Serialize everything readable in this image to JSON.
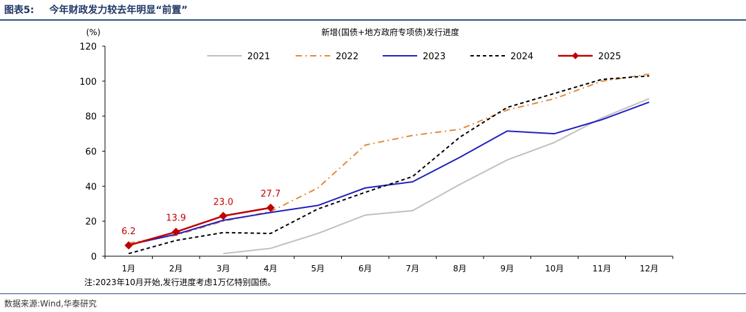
{
  "header": {
    "figure_label": "图表5:",
    "title": "今年财政发力较去年明显“前置”"
  },
  "footer": {
    "note": "注:2023年10月开始,发行进度考虑1万亿特别国债。",
    "source": "数据来源:Wind,华泰研究"
  },
  "chart_data": {
    "type": "line",
    "title": "新增(国债+地方政府专项债)发行进度",
    "ylabel": "(%)",
    "ylim": [
      0,
      120
    ],
    "yticks": [
      0,
      20,
      40,
      60,
      80,
      100,
      120
    ],
    "categories": [
      "1月",
      "2月",
      "3月",
      "4月",
      "5月",
      "6月",
      "7月",
      "8月",
      "9月",
      "10月",
      "11月",
      "12月"
    ],
    "legend_position": "top",
    "series": [
      {
        "name": "2021",
        "color": "#bfbfbf",
        "style": "solid",
        "values": [
          null,
          null,
          1.5,
          4.5,
          13,
          23.5,
          26,
          41,
          55,
          65,
          79,
          90
        ]
      },
      {
        "name": "2022",
        "color": "#e08a3c",
        "style": "dashdot",
        "values": [
          7.5,
          12,
          20,
          25.5,
          39,
          63.5,
          69,
          72.5,
          83.5,
          90,
          100,
          104
        ]
      },
      {
        "name": "2023",
        "color": "#1f1fbf",
        "style": "solid",
        "values": [
          6.5,
          12.5,
          20.5,
          25,
          29,
          39,
          42.5,
          56.5,
          71.5,
          70,
          78,
          88
        ]
      },
      {
        "name": "2024",
        "color": "#000000",
        "style": "dashed",
        "values": [
          1.5,
          9,
          13.5,
          13,
          27,
          36.5,
          45.5,
          68,
          85,
          93,
          101,
          103
        ]
      },
      {
        "name": "2025",
        "color": "#c00000",
        "style": "solid-diamond",
        "values": [
          6.2,
          13.9,
          23.0,
          27.7,
          null,
          null,
          null,
          null,
          null,
          null,
          null,
          null
        ],
        "labels": [
          "6.2",
          "13.9",
          "23.0",
          "27.7"
        ]
      }
    ]
  }
}
